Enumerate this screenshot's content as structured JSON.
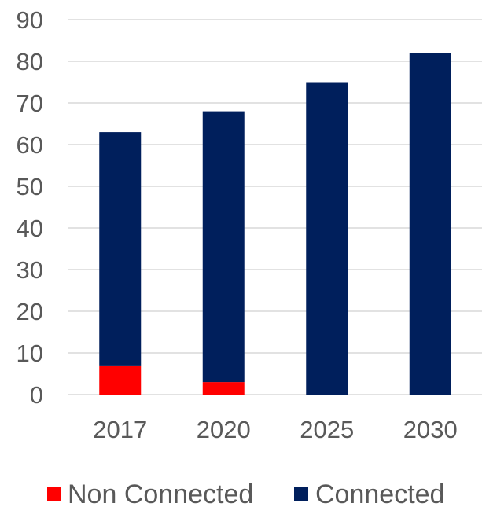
{
  "chart_data": {
    "type": "bar",
    "stacked": true,
    "categories": [
      "2017",
      "2020",
      "2025",
      "2030"
    ],
    "series": [
      {
        "name": "Non Connected",
        "color": "#ff0000",
        "values": [
          7,
          3,
          0,
          0
        ]
      },
      {
        "name": "Connected",
        "color": "#001f5c",
        "values": [
          56,
          65,
          75,
          82
        ]
      }
    ],
    "ylim": [
      0,
      90
    ],
    "yticks": [
      "0",
      "10",
      "20",
      "30",
      "40",
      "50",
      "60",
      "70",
      "80",
      "90"
    ],
    "grid": true,
    "legend_position": "bottom"
  }
}
